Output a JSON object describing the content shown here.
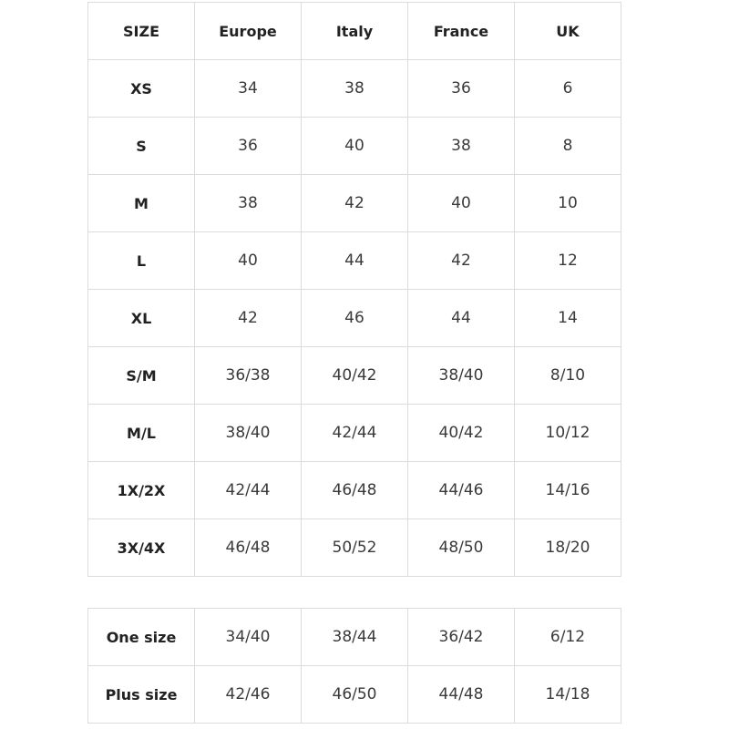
{
  "size_table": {
    "headers": [
      "SIZE",
      "Europe",
      "Italy",
      "France",
      "UK"
    ],
    "rows": [
      [
        "XS",
        "34",
        "38",
        "36",
        "6"
      ],
      [
        "S",
        "36",
        "40",
        "38",
        "8"
      ],
      [
        "M",
        "38",
        "42",
        "40",
        "10"
      ],
      [
        "L",
        "40",
        "44",
        "42",
        "12"
      ],
      [
        "XL",
        "42",
        "46",
        "44",
        "14"
      ],
      [
        "S/M",
        "36/38",
        "40/42",
        "38/40",
        "8/10"
      ],
      [
        "M/L",
        "38/40",
        "42/44",
        "40/42",
        "10/12"
      ],
      [
        "1X/2X",
        "42/44",
        "46/48",
        "44/46",
        "14/16"
      ],
      [
        "3X/4X",
        "46/48",
        "50/52",
        "48/50",
        "18/20"
      ]
    ]
  },
  "special_table": {
    "rows": [
      [
        "One size",
        "34/40",
        "38/44",
        "36/42",
        "6/12"
      ],
      [
        "Plus size",
        "42/46",
        "46/50",
        "44/48",
        "14/18"
      ]
    ]
  }
}
